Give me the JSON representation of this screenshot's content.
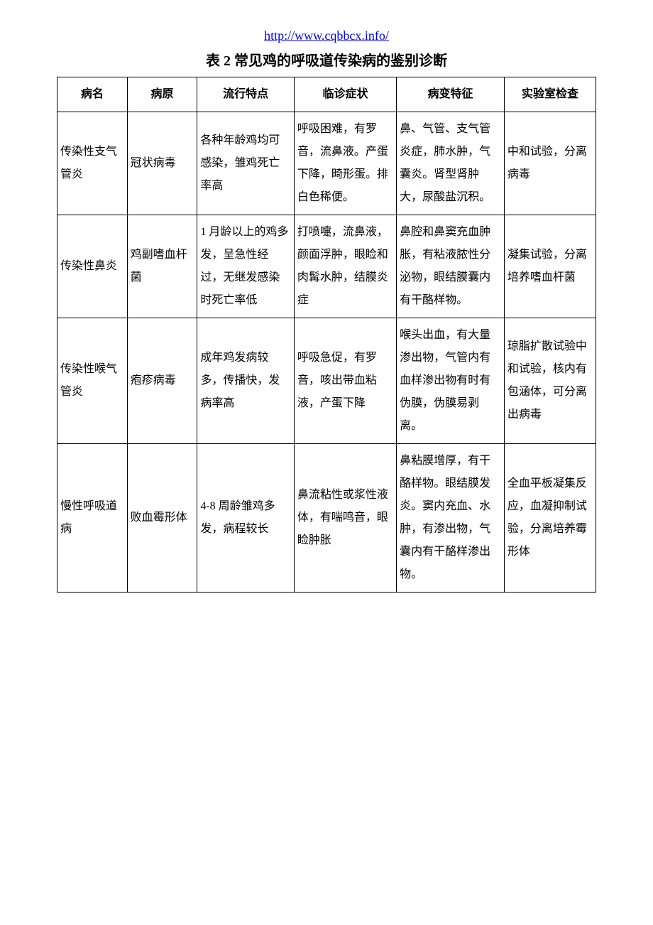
{
  "header": {
    "url": "http://www.cqbbcx.info/",
    "title": "表 2 常见鸡的呼吸道传染病的鉴别诊断"
  },
  "table": {
    "columns": [
      "病名",
      "病原",
      "流行特点",
      "临诊症状",
      "病变特征",
      "实验室检查"
    ],
    "column_widths": [
      "13%",
      "13%",
      "18%",
      "19%",
      "20%",
      "17%"
    ],
    "rows": [
      {
        "name": "传染性支气管炎",
        "pathogen": "冠状病毒",
        "epidemic": "各种年龄鸡均可感染，雏鸡死亡率高",
        "symptoms": "呼吸困难，有罗音，流鼻液。产蛋下降，畸形蛋。排白色稀便。",
        "lesions": "鼻、气管、支气管炎症，肺水肿，气囊炎。肾型肾肿大，尿酸盐沉积。",
        "lab": "中和试验，分离病毒"
      },
      {
        "name": "传染性鼻炎",
        "pathogen": "鸡副嗜血杆菌",
        "epidemic": "1 月龄以上的鸡多发，呈急性经过，无继发感染时死亡率低",
        "symptoms": "打喷嚏，流鼻液，颜面浮肿，眼睑和肉髯水肿，结膜炎症",
        "lesions": "鼻腔和鼻窦充血肿胀，有粘液脓性分泌物，眼结膜囊内有干酪样物。",
        "lab": "凝集试验，分离培养嗜血杆菌"
      },
      {
        "name": "传染性喉气管炎",
        "pathogen": "疱疹病毒",
        "epidemic": "成年鸡发病较多，传播快，发病率高",
        "symptoms": "呼吸急促，有罗音，咳出带血粘液，产蛋下降",
        "lesions": "喉头出血，有大量渗出物，气管内有血样渗出物有时有伪膜，伪膜易剥离。",
        "lab": "琼脂扩散试验中和试验，核内有包涵体，可分离出病毒"
      },
      {
        "name": "慢性呼吸道病",
        "pathogen": "败血霉形体",
        "epidemic": "4-8 周龄雏鸡多发，病程较长",
        "symptoms": "鼻流粘性或浆性液体，有喘鸣音，眼睑肿胀",
        "lesions": "鼻粘膜增厚，有干酪样物。眼结膜发炎。窦内充血、水肿，有渗出物，气囊内有干酪样渗出物。",
        "lab": "全血平板凝集反应，血凝抑制试验，分离培养霉形体"
      }
    ]
  },
  "styling": {
    "background_color": "#ffffff",
    "text_color": "#000000",
    "link_color": "#0000ee",
    "border_color": "#000000",
    "title_fontsize": 20,
    "cell_fontsize": 16,
    "url_fontsize": 18,
    "line_height": 2.0
  }
}
